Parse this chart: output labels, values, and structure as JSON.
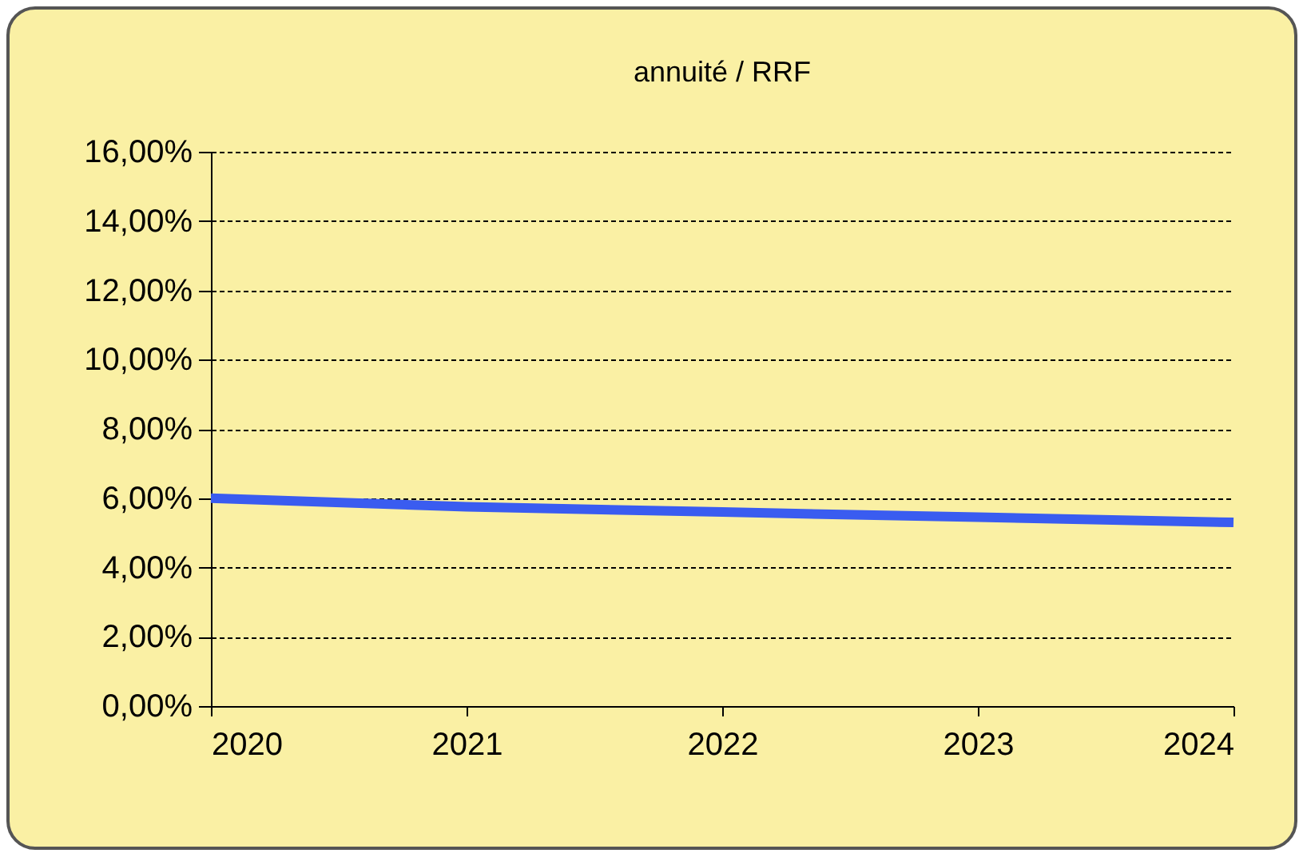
{
  "chart_data": {
    "type": "line",
    "title": "annuité / RRF",
    "x": [
      2020,
      2021,
      2022,
      2023,
      2024
    ],
    "series": [
      {
        "color": "#3a5cf0",
        "values": [
          6.0,
          5.75,
          5.6,
          5.45,
          5.3
        ]
      }
    ],
    "xlim": [
      2020,
      2024
    ],
    "xticks": [
      2020,
      2021,
      2022,
      2023,
      2024
    ],
    "ylim": [
      0,
      16
    ],
    "yticks": [
      {
        "value": 0,
        "label": "0,00%"
      },
      {
        "value": 2,
        "label": "2,00%"
      },
      {
        "value": 4,
        "label": "4,00%"
      },
      {
        "value": 6,
        "label": "6,00%"
      },
      {
        "value": 8,
        "label": "8,00%"
      },
      {
        "value": 10,
        "label": "10,00%"
      },
      {
        "value": 12,
        "label": "12,00%"
      },
      {
        "value": 14,
        "label": "14,00%"
      },
      {
        "value": 16,
        "label": "16,00%"
      }
    ],
    "grid": "y",
    "marker": "none",
    "line_style": "solid"
  }
}
